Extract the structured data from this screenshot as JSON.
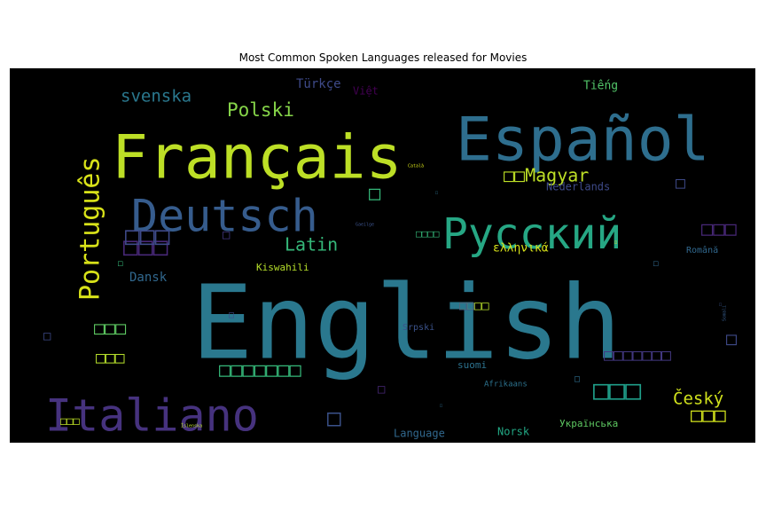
{
  "chart_data": {
    "type": "wordcloud",
    "title": "Most Common Spoken Languages released for Movies",
    "background": "#000000",
    "words": [
      {
        "text": "English",
        "weight": 100,
        "color": "#2a788e"
      },
      {
        "text": "Français",
        "weight": 40,
        "color": "#bddf26"
      },
      {
        "text": "Español",
        "weight": 40,
        "color": "#2e6e8e"
      },
      {
        "text": "Deutsch",
        "weight": 32,
        "color": "#365c8d"
      },
      {
        "text": "Русский",
        "weight": 30,
        "color": "#26a784"
      },
      {
        "text": "Italiano",
        "weight": 32,
        "color": "#46327e"
      },
      {
        "text": "Português",
        "weight": 18,
        "color": "#d8e219"
      },
      {
        "text": "svenska",
        "weight": 10,
        "color": "#2a788e"
      },
      {
        "text": "Polski",
        "weight": 12,
        "color": "#86d549"
      },
      {
        "text": "Türkçe",
        "weight": 8,
        "color": "#3e4a89"
      },
      {
        "text": "Việt",
        "weight": 6,
        "color": "#440154"
      },
      {
        "text": "Tiếng",
        "weight": 7,
        "color": "#52c569"
      },
      {
        "text": "□□Magyar",
        "weight": 12,
        "color": "#bddf26"
      },
      {
        "text": "Nederlands",
        "weight": 7,
        "color": "#3e4a89"
      },
      {
        "text": "□□□",
        "weight": 16,
        "color": "#482878"
      },
      {
        "text": "Latin",
        "weight": 11,
        "color": "#35b779"
      },
      {
        "text": "ελληνικά",
        "weight": 8,
        "color": "#d8e219"
      },
      {
        "text": "Dansk",
        "weight": 8,
        "color": "#31688e"
      },
      {
        "text": "Kiswahili",
        "weight": 6,
        "color": "#b5de2b"
      },
      {
        "text": "Română",
        "weight": 5,
        "color": "#31688e"
      },
      {
        "text": "Srpski",
        "weight": 5,
        "color": "#3b528b"
      },
      {
        "text": "suomi",
        "weight": 6,
        "color": "#2c728e"
      },
      {
        "text": "Afrikaans",
        "weight": 5,
        "color": "#2c728e"
      },
      {
        "text": "Český",
        "weight": 11,
        "color": "#d0e11c"
      },
      {
        "text": "Українська",
        "weight": 6,
        "color": "#5ec962"
      },
      {
        "text": "Language",
        "weight": 7,
        "color": "#31688e"
      },
      {
        "text": "Norsk",
        "weight": 7,
        "color": "#22a884"
      },
      {
        "text": "Gaeilge",
        "weight": 3,
        "color": "#3b528b"
      },
      {
        "text": "Català",
        "weight": 3,
        "color": "#d8e219"
      },
      {
        "text": "Íslenska",
        "weight": 3,
        "color": "#bddf26"
      },
      {
        "text": "Somali",
        "weight": 3,
        "color": "#365c8d"
      }
    ],
    "placeholder_glyph_groups": [
      {
        "text": "□□□",
        "color": "#482878"
      },
      {
        "text": "□□□",
        "color": "#3e4a89"
      },
      {
        "text": "□□□",
        "color": "#d0e11c"
      },
      {
        "text": "□□□",
        "color": "#5ec962"
      },
      {
        "text": "□□□",
        "color": "#b5de2b"
      },
      {
        "text": "□□□□□□□",
        "color": "#35b779"
      },
      {
        "text": "□□□□□□□",
        "color": "#443983"
      },
      {
        "text": "□□□",
        "color": "#1f9e89"
      },
      {
        "text": "□□□",
        "color": "#bddf26"
      },
      {
        "text": "□□□□",
        "color": "#35b779"
      },
      {
        "text": "□□□□",
        "color": "#b5de2b"
      },
      {
        "text": "□□",
        "color": "#3b528b"
      },
      {
        "text": "□",
        "color": "#35b779"
      },
      {
        "text": "□",
        "color": "#3e4a89"
      },
      {
        "text": "□",
        "color": "#3e4a89"
      },
      {
        "text": "□",
        "color": "#3e4a89"
      },
      {
        "text": "□",
        "color": "#3b528b"
      },
      {
        "text": "□",
        "color": "#443983"
      },
      {
        "text": "□",
        "color": "#482878"
      },
      {
        "text": "□",
        "color": "#35b779"
      },
      {
        "text": "□",
        "color": "#3e4a89"
      },
      {
        "text": "□",
        "color": "#2e6e8e"
      },
      {
        "text": "□",
        "color": "#31688e"
      },
      {
        "text": "□",
        "color": "#3b528b"
      },
      {
        "text": "□",
        "color": "#2c728e"
      },
      {
        "text": "□",
        "color": "#2e6e8e"
      },
      {
        "text": "□",
        "color": "#fde725"
      }
    ]
  }
}
